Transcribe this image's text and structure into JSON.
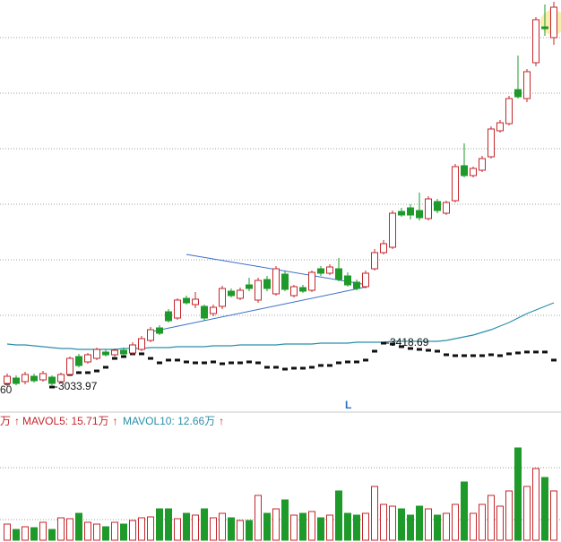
{
  "chart_data": {
    "type": "candlestick",
    "ylim": [
      0,
      460
    ],
    "y2lim": [
      2814,
      6428
    ],
    "volume_ylim": [
      0,
      133
    ],
    "up_color": "#c4262b",
    "down_color": "#1d9a2a",
    "candles": {
      "open": [
        32,
        38,
        34,
        40,
        36,
        39,
        34,
        42,
        62,
        56,
        60,
        67,
        64,
        69,
        66,
        70,
        80,
        94,
        112,
        105,
        127,
        120,
        118,
        110,
        118,
        135,
        127,
        142,
        125,
        148,
        132,
        154,
        130,
        139,
        136,
        160,
        155,
        160,
        152,
        145,
        140,
        160,
        178,
        184,
        224,
        228,
        225,
        216,
        235,
        222,
        236,
        275,
        264,
        270,
        285,
        314,
        322,
        360,
        350,
        390,
        430,
        418
      ],
      "close": [
        40,
        32,
        42,
        35,
        43,
        32,
        42,
        60,
        52,
        64,
        70,
        64,
        69,
        65,
        75,
        82,
        92,
        88,
        102,
        125,
        122,
        126,
        105,
        117,
        138,
        130,
        136,
        138,
        147,
        138,
        160,
        137,
        140,
        135,
        156,
        155,
        162,
        148,
        142,
        138,
        155,
        178,
        188,
        222,
        220,
        220,
        217,
        238,
        225,
        234,
        274,
        264,
        272,
        283,
        316,
        323,
        350,
        352,
        380,
        438,
        428,
        452
      ],
      "high": [
        43,
        41,
        45,
        43,
        46,
        41,
        44,
        62,
        65,
        66,
        72,
        70,
        71,
        72,
        78,
        85,
        95,
        97,
        115,
        127,
        130,
        134,
        120,
        120,
        141,
        138,
        139,
        150,
        150,
        152,
        163,
        157,
        142,
        142,
        158,
        163,
        165,
        172,
        156,
        148,
        158,
        182,
        192,
        225,
        228,
        232,
        245,
        241,
        238,
        236,
        277,
        300,
        274,
        286,
        319,
        326,
        353,
        398,
        383,
        441,
        455,
        458
      ],
      "low": [
        29,
        30,
        31,
        33,
        34,
        30,
        32,
        40,
        50,
        54,
        58,
        62,
        62,
        63,
        64,
        68,
        78,
        86,
        100,
        103,
        120,
        116,
        102,
        107,
        115,
        128,
        125,
        135,
        122,
        135,
        130,
        135,
        128,
        133,
        134,
        152,
        153,
        146,
        140,
        136,
        138,
        158,
        176,
        182,
        218,
        215,
        214,
        214,
        222,
        220,
        234,
        262,
        262,
        268,
        283,
        312,
        320,
        350,
        346,
        386,
        420,
        410
      ]
    },
    "volume": [
      18,
      12,
      15,
      14,
      20,
      12,
      25,
      24,
      30,
      20,
      18,
      15,
      20,
      18,
      22,
      25,
      26,
      35,
      35,
      24,
      30,
      28,
      35,
      25,
      30,
      25,
      22,
      22,
      50,
      30,
      35,
      45,
      28,
      30,
      32,
      25,
      28,
      55,
      30,
      28,
      30,
      60,
      40,
      38,
      35,
      28,
      38,
      35,
      28,
      30,
      40,
      65,
      30,
      40,
      50,
      38,
      55,
      103,
      60,
      80,
      70,
      55
    ],
    "series": [
      {
        "color": "#2a8fa8",
        "values": [
          76,
          75,
          75,
          74,
          73,
          72,
          71,
          71,
          70,
          70,
          70,
          70,
          70,
          71,
          71,
          71,
          72,
          72,
          72,
          73,
          73,
          73,
          73,
          74,
          74,
          74,
          75,
          75,
          75,
          75,
          75,
          76,
          76,
          76,
          76,
          77,
          77,
          77,
          77,
          78,
          78,
          78,
          78,
          79,
          79,
          79,
          79,
          79,
          79,
          80,
          82,
          84,
          86,
          89,
          92,
          96,
          100,
          105,
          110,
          114,
          118,
          122
        ]
      },
      {
        "axis": "y2",
        "color": "#111111",
        "values": [
          3065,
          3097,
          3113,
          3120,
          3128,
          3033.97,
          3128,
          3144,
          3160,
          3160,
          3175,
          3207,
          3285,
          3301,
          3325,
          3325,
          3285,
          3246,
          3270,
          3270,
          3254,
          3246,
          3246,
          3254,
          3238,
          3246,
          3246,
          3254,
          3246,
          3207,
          3207,
          3191,
          3199,
          3199,
          3207,
          3223,
          3223,
          3246,
          3254,
          3254,
          3270,
          3348,
          3418.69,
          3411,
          3388,
          3372,
          3364,
          3356,
          3348,
          3317,
          3309,
          3309,
          3309,
          3309,
          3317,
          3309,
          3325,
          3333,
          3341,
          3341,
          3341,
          3270
        ]
      }
    ],
    "left_label": "60",
    "marker": "L",
    "vol_texts": [
      "万",
      "MAVOL5: 15.71万",
      "MAVOL10: 12.66万"
    ],
    "arrow": "↑"
  }
}
